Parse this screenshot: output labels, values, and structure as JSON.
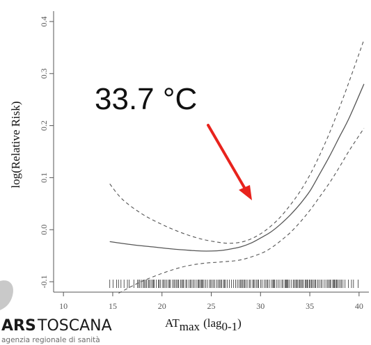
{
  "chart_data": {
    "type": "line",
    "title": "",
    "xlabel_main": "AT",
    "xlabel_sub": "max",
    "xlabel_rest": "(lag",
    "xlabel_lag_sub": "0-1",
    "xlabel_close": ")",
    "ylabel": "log(Relative Risk)",
    "xlim": [
      9,
      41
    ],
    "ylim": [
      -0.12,
      0.42
    ],
    "x_ticks": [
      10,
      15,
      20,
      25,
      30,
      35,
      40
    ],
    "x_tick_labels": [
      "10",
      "15",
      "20",
      "25",
      "30",
      "35",
      "40"
    ],
    "y_ticks": [
      -0.1,
      0.0,
      0.1,
      0.2,
      0.3,
      0.4
    ],
    "y_tick_labels": [
      "-0.1",
      "0.0",
      "0.1",
      "0.2",
      "0.3",
      "0.4"
    ],
    "series": [
      {
        "style": "solid",
        "x": [
          14.7,
          17,
          19,
          21,
          23,
          24,
          25,
          26,
          27,
          28,
          29,
          30,
          31,
          32,
          33,
          34,
          35,
          36,
          37,
          38,
          39,
          40.5
        ],
        "y": [
          -0.023,
          -0.029,
          -0.033,
          -0.037,
          -0.04,
          -0.041,
          -0.041,
          -0.04,
          -0.037,
          -0.033,
          -0.026,
          -0.016,
          -0.005,
          0.01,
          0.028,
          0.049,
          0.074,
          0.107,
          0.141,
          0.178,
          0.215,
          0.28
        ]
      },
      {
        "style": "dashed",
        "x": [
          14.7,
          16,
          18,
          20,
          22,
          24,
          26,
          27,
          28,
          29,
          30,
          31,
          32,
          33,
          34,
          35,
          36,
          37,
          38,
          39,
          40.5
        ],
        "y": [
          0.088,
          0.058,
          0.03,
          0.01,
          -0.006,
          -0.018,
          -0.025,
          -0.026,
          -0.024,
          -0.018,
          -0.008,
          0.006,
          0.024,
          0.047,
          0.073,
          0.105,
          0.143,
          0.186,
          0.234,
          0.285,
          0.365
        ]
      },
      {
        "style": "dashed",
        "x": [
          15.6,
          17,
          18,
          20,
          22,
          24,
          26,
          28,
          30,
          31,
          32,
          33,
          34,
          35,
          36,
          37,
          38,
          39,
          40.5
        ],
        "y": [
          -0.122,
          -0.108,
          -0.099,
          -0.084,
          -0.072,
          -0.065,
          -0.062,
          -0.058,
          -0.046,
          -0.036,
          -0.022,
          -0.006,
          0.014,
          0.037,
          0.063,
          0.09,
          0.12,
          0.152,
          0.195
        ]
      }
    ],
    "rug_range": [
      14.7,
      40.3
    ],
    "annotation": {
      "text": "33.7 °C",
      "arrow_color": "#e8231d"
    },
    "colors": {
      "curve": "#555555",
      "axis": "#555555"
    }
  },
  "logo": {
    "ars": "ARS",
    "toscana": "TOSCANA",
    "subtitle": "agenzia regionale di sanità"
  }
}
